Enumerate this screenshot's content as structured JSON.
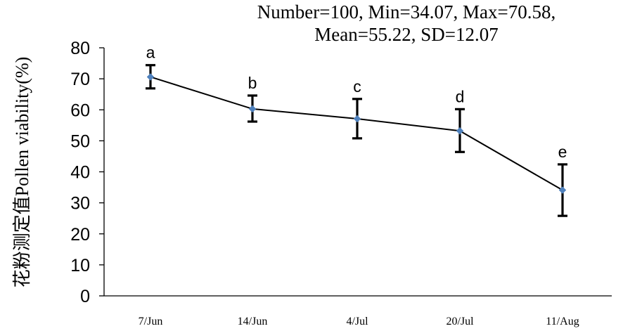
{
  "chart_data": {
    "type": "line",
    "annotation_lines": [
      "Number=100, Min=34.07, Max=70.58,",
      "Mean=55.22, SD=12.07"
    ],
    "ylabel": "花粉测定值Pollen viability(%)",
    "xlabel": "",
    "categories": [
      "7/Jun",
      "14/Jun",
      "4/Jul",
      "20/Jul",
      "11/Aug"
    ],
    "y_ticks": [
      "0",
      "10",
      "20",
      "30",
      "40",
      "50",
      "60",
      "70",
      "80"
    ],
    "ylim": [
      0,
      80
    ],
    "series": [
      {
        "values": [
          70.6,
          60.3,
          57.1,
          53.2,
          34.1
        ],
        "error_low": [
          66.9,
          56.2,
          50.8,
          46.4,
          25.8
        ],
        "error_high": [
          74.4,
          64.6,
          63.5,
          60.2,
          42.4
        ],
        "point_labels": [
          "a",
          "b",
          "c",
          "d",
          "e"
        ],
        "line_color": "#000000",
        "marker_color": "#4F81BD"
      }
    ],
    "grid": false,
    "legend": "none"
  }
}
